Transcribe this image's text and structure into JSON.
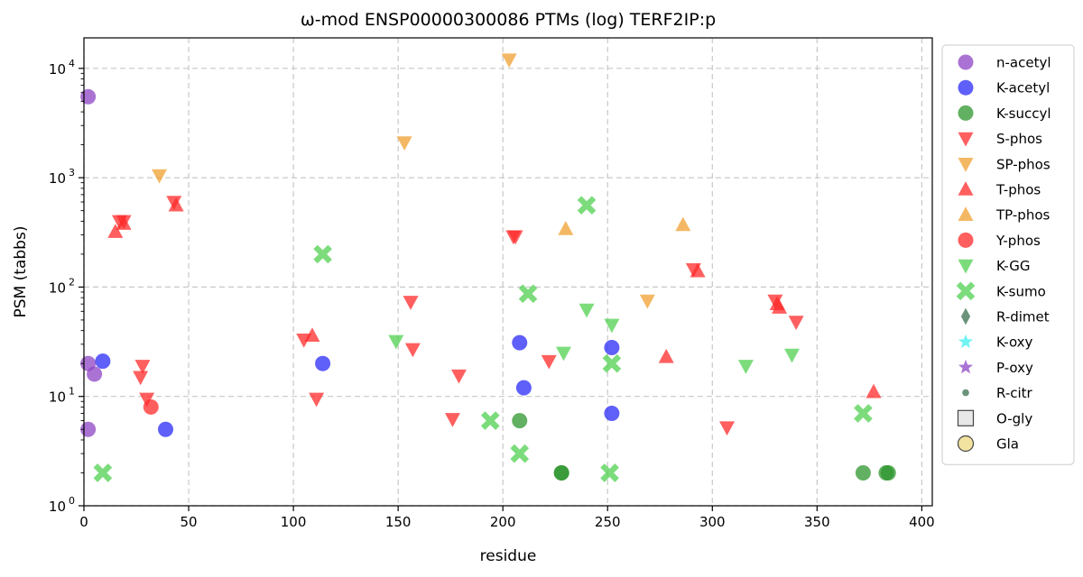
{
  "chart_data": {
    "type": "scatter",
    "title": "ω-mod ENSP00000300086 PTMs (log) TERF2IP:p",
    "xlabel": "residue",
    "ylabel": "PSM (tabbs)",
    "xlim": [
      0,
      405
    ],
    "ylim": [
      1,
      19000
    ],
    "yscale": "log",
    "xticks": [
      "0",
      "50",
      "100",
      "150",
      "200",
      "250",
      "300",
      "350",
      "400"
    ],
    "yticks": [
      {
        "base": "10",
        "exp": "0"
      },
      {
        "base": "10",
        "exp": "1"
      },
      {
        "base": "10",
        "exp": "2"
      },
      {
        "base": "10",
        "exp": "3"
      },
      {
        "base": "10",
        "exp": "4"
      }
    ],
    "grid": true,
    "legend_position": "right, outside plot",
    "series": [
      {
        "name": "n-acetyl",
        "marker": "circle",
        "color": "#8e44c4",
        "points": [
          [
            2,
            5500
          ],
          [
            2,
            20
          ],
          [
            5,
            16
          ],
          [
            2,
            5
          ]
        ]
      },
      {
        "name": "K-acetyl",
        "marker": "circle",
        "color": "#2a2af7",
        "points": [
          [
            9,
            21
          ],
          [
            39,
            5
          ],
          [
            114,
            20
          ],
          [
            208,
            31
          ],
          [
            210,
            12
          ],
          [
            252,
            28
          ],
          [
            252,
            7
          ]
        ]
      },
      {
        "name": "K-succyl",
        "marker": "circle",
        "color": "#2e962e",
        "points": [
          [
            208,
            6
          ],
          [
            228,
            2
          ],
          [
            228,
            2
          ],
          [
            372,
            2
          ],
          [
            383,
            2
          ],
          [
            384,
            2
          ]
        ]
      },
      {
        "name": "S-phos",
        "marker": "triangle-down",
        "color": "#ff2a2a",
        "points": [
          [
            17,
            400
          ],
          [
            19,
            400
          ],
          [
            43,
            600
          ],
          [
            28,
            19
          ],
          [
            27,
            15
          ],
          [
            30,
            9.5
          ],
          [
            105,
            33
          ],
          [
            111,
            9.5
          ],
          [
            156,
            73
          ],
          [
            157,
            27
          ],
          [
            176,
            6.2
          ],
          [
            179,
            15.5
          ],
          [
            205,
            290
          ],
          [
            206,
            290
          ],
          [
            222,
            21
          ],
          [
            291,
            145
          ],
          [
            307,
            5.2
          ],
          [
            330,
            75
          ],
          [
            340,
            48
          ]
        ]
      },
      {
        "name": "SP-phos",
        "marker": "triangle-down",
        "color": "#f0a030",
        "points": [
          [
            36,
            1050
          ],
          [
            153,
            2100
          ],
          [
            203,
            12000
          ],
          [
            269,
            75
          ]
        ]
      },
      {
        "name": "T-phos",
        "marker": "triangle-up",
        "color": "#ff2a2a",
        "points": [
          [
            15,
            320
          ],
          [
            19,
            380
          ],
          [
            44,
            560
          ],
          [
            109,
            36
          ],
          [
            278,
            23
          ],
          [
            293,
            140
          ],
          [
            331,
            70
          ],
          [
            332,
            65
          ],
          [
            377,
            11
          ]
        ]
      },
      {
        "name": "TP-phos",
        "marker": "triangle-up",
        "color": "#f0a030",
        "points": [
          [
            230,
            340
          ],
          [
            286,
            370
          ]
        ]
      },
      {
        "name": "Y-phos",
        "marker": "circle",
        "color": "#ff2a2a",
        "points": [
          [
            32,
            8
          ]
        ]
      },
      {
        "name": "K-GG",
        "marker": "triangle-down",
        "color": "#50d050",
        "points": [
          [
            149,
            32
          ],
          [
            229,
            25
          ],
          [
            240,
            62
          ],
          [
            252,
            45
          ],
          [
            316,
            19
          ],
          [
            338,
            24
          ]
        ]
      },
      {
        "name": "K-sumo",
        "marker": "x",
        "color": "#50d050",
        "points": [
          [
            114,
            200
          ],
          [
            9,
            2
          ],
          [
            194,
            6
          ],
          [
            208,
            3
          ],
          [
            212,
            87
          ],
          [
            240,
            560
          ],
          [
            251,
            2
          ],
          [
            252,
            20
          ],
          [
            372,
            7
          ]
        ]
      },
      {
        "name": "R-dimet",
        "marker": "diamond",
        "color": "#3a6f50",
        "points": []
      },
      {
        "name": "K-oxy",
        "marker": "star",
        "color": "#40f0f0",
        "points": []
      },
      {
        "name": "P-oxy",
        "marker": "star",
        "color": "#8e44c4",
        "points": []
      },
      {
        "name": "R-citr",
        "marker": "small-circle",
        "color": "#3a6f50",
        "points": []
      },
      {
        "name": "O-gly",
        "marker": "square-open",
        "color": "#e8e8e8",
        "points": []
      },
      {
        "name": "Gla",
        "marker": "circle-open",
        "color": "#f2e3a0",
        "points": []
      }
    ]
  }
}
